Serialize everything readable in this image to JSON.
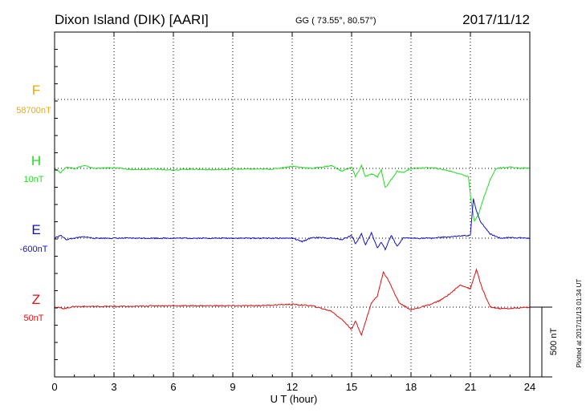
{
  "header": {
    "station": "Dixon Island (DIK)  [AARI]",
    "coords": "GG ( 73.55°,  80.57°)",
    "date": "2017/11/12"
  },
  "footer": {
    "plotted": "Plotted at 2017/11/13 01:34 UT"
  },
  "colors": {
    "F": "#f5a800",
    "H": "#22dd22",
    "E": "#1010cc",
    "Z": "#dd1111"
  },
  "chart_data": {
    "type": "line",
    "xlabel": "U T (hour)",
    "xlim": [
      0,
      24
    ],
    "x_ticks": [
      "0",
      "3",
      "6",
      "9",
      "12",
      "15",
      "18",
      "21",
      "24"
    ],
    "scale_bar": "500 nT",
    "scale_bar_value": 500,
    "series": [
      {
        "name": "F",
        "baseline": "58700nT",
        "color": "#f5a800",
        "baseline_value": 0,
        "points": []
      },
      {
        "name": "H",
        "baseline": "10nT",
        "color": "#22dd22",
        "baseline_value": 10,
        "points": [
          [
            0,
            0
          ],
          [
            0.3,
            -30
          ],
          [
            0.6,
            10
          ],
          [
            1,
            0
          ],
          [
            1.5,
            20
          ],
          [
            2,
            0
          ],
          [
            3,
            5
          ],
          [
            4,
            -10
          ],
          [
            5,
            -5
          ],
          [
            6,
            -10
          ],
          [
            7,
            -5
          ],
          [
            8,
            -10
          ],
          [
            9,
            -5
          ],
          [
            10,
            -5
          ],
          [
            11,
            -5
          ],
          [
            12,
            15
          ],
          [
            13,
            0
          ],
          [
            14,
            20
          ],
          [
            14.5,
            -20
          ],
          [
            15,
            10
          ],
          [
            15.2,
            -60
          ],
          [
            15.5,
            20
          ],
          [
            15.7,
            -60
          ],
          [
            16,
            -40
          ],
          [
            16.3,
            -60
          ],
          [
            16.5,
            -10
          ],
          [
            16.7,
            -140
          ],
          [
            17,
            -80
          ],
          [
            17.3,
            -20
          ],
          [
            17.6,
            -30
          ],
          [
            18,
            0
          ],
          [
            19,
            5
          ],
          [
            19.5,
            -5
          ],
          [
            20,
            -20
          ],
          [
            20.5,
            -40
          ],
          [
            20.9,
            -60
          ],
          [
            21.05,
            -250
          ],
          [
            21.2,
            -380
          ],
          [
            21.4,
            -330
          ],
          [
            21.7,
            -200
          ],
          [
            22,
            -80
          ],
          [
            22.3,
            0
          ],
          [
            22.6,
            5
          ],
          [
            23,
            10
          ],
          [
            23.5,
            0
          ],
          [
            24,
            5
          ]
        ]
      },
      {
        "name": "E",
        "baseline": "-600nT",
        "color": "#1010cc",
        "baseline_value": -600,
        "points": [
          [
            0,
            0
          ],
          [
            0.3,
            20
          ],
          [
            0.6,
            -10
          ],
          [
            1,
            0
          ],
          [
            1.5,
            10
          ],
          [
            2,
            0
          ],
          [
            3,
            0
          ],
          [
            4,
            0
          ],
          [
            5,
            0
          ],
          [
            6,
            0
          ],
          [
            7,
            0
          ],
          [
            8,
            0
          ],
          [
            9,
            0
          ],
          [
            10,
            0
          ],
          [
            11,
            0
          ],
          [
            12,
            0
          ],
          [
            12.5,
            -25
          ],
          [
            13,
            5
          ],
          [
            14,
            0
          ],
          [
            14.5,
            -10
          ],
          [
            15,
            20
          ],
          [
            15.2,
            -40
          ],
          [
            15.5,
            30
          ],
          [
            15.7,
            -50
          ],
          [
            16,
            40
          ],
          [
            16.3,
            -70
          ],
          [
            16.5,
            -30
          ],
          [
            16.7,
            -80
          ],
          [
            17,
            20
          ],
          [
            17.3,
            -60
          ],
          [
            17.6,
            0
          ],
          [
            18,
            0
          ],
          [
            19,
            0
          ],
          [
            20,
            10
          ],
          [
            20.5,
            15
          ],
          [
            21,
            20
          ],
          [
            21.15,
            280
          ],
          [
            21.3,
            200
          ],
          [
            21.5,
            120
          ],
          [
            22,
            30
          ],
          [
            22.5,
            0
          ],
          [
            23,
            5
          ],
          [
            24,
            0
          ]
        ]
      },
      {
        "name": "Z",
        "baseline": "50nT",
        "color": "#dd1111",
        "baseline_value": 50,
        "points": [
          [
            0,
            0
          ],
          [
            0.5,
            -10
          ],
          [
            1,
            5
          ],
          [
            2,
            5
          ],
          [
            3,
            5
          ],
          [
            4,
            5
          ],
          [
            5,
            10
          ],
          [
            6,
            10
          ],
          [
            7,
            10
          ],
          [
            8,
            10
          ],
          [
            9,
            10
          ],
          [
            10,
            10
          ],
          [
            11,
            15
          ],
          [
            12,
            20
          ],
          [
            13,
            10
          ],
          [
            14,
            -30
          ],
          [
            14.6,
            -100
          ],
          [
            15,
            -160
          ],
          [
            15.2,
            -100
          ],
          [
            15.5,
            -200
          ],
          [
            15.8,
            -60
          ],
          [
            16,
            30
          ],
          [
            16.3,
            80
          ],
          [
            16.6,
            250
          ],
          [
            16.8,
            210
          ],
          [
            17,
            150
          ],
          [
            17.4,
            30
          ],
          [
            18,
            -20
          ],
          [
            18.5,
            0
          ],
          [
            19,
            20
          ],
          [
            19.5,
            50
          ],
          [
            20,
            100
          ],
          [
            20.5,
            160
          ],
          [
            21,
            130
          ],
          [
            21.3,
            270
          ],
          [
            21.6,
            130
          ],
          [
            22,
            0
          ],
          [
            22.5,
            -10
          ],
          [
            23,
            -10
          ],
          [
            24,
            0
          ]
        ]
      }
    ]
  }
}
